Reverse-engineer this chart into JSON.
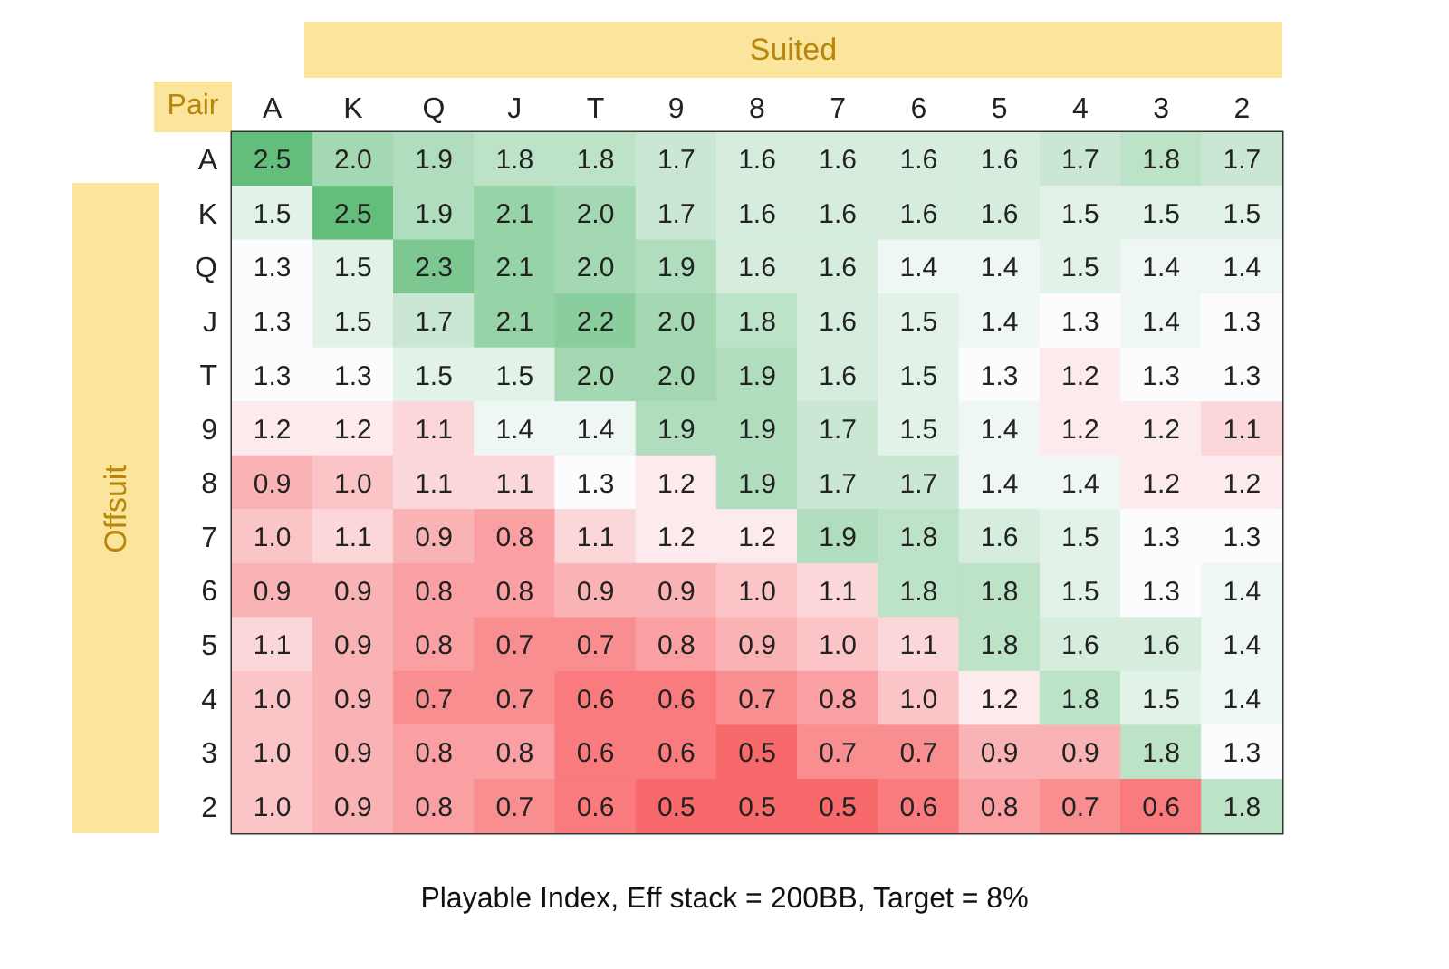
{
  "chart_data": {
    "type": "heatmap",
    "title": "Playable Index, Eff stack = 200BB, Target = 8%",
    "xlabel": "Suited",
    "ylabel": "Offsuit",
    "annotations": [
      "Pair"
    ],
    "categories": [
      "A",
      "K",
      "Q",
      "J",
      "T",
      "9",
      "8",
      "7",
      "6",
      "5",
      "4",
      "3",
      "2"
    ],
    "y_categories": [
      "A",
      "K",
      "Q",
      "J",
      "T",
      "9",
      "8",
      "7",
      "6",
      "5",
      "4",
      "3",
      "2"
    ],
    "cell_labels": [
      [
        "2.5",
        "2.0",
        "1.9",
        "1.8",
        "1.8",
        "1.7",
        "1.6",
        "1.6",
        "1.6",
        "1.6",
        "1.7",
        "1.8",
        "1.7"
      ],
      [
        "1.5",
        "2.5",
        "1.9",
        "2.1",
        "2.0",
        "1.7",
        "1.6",
        "1.6",
        "1.6",
        "1.6",
        "1.5",
        "1.5",
        "1.5"
      ],
      [
        "1.3",
        "1.5",
        "2.3",
        "2.1",
        "2.0",
        "1.9",
        "1.6",
        "1.6",
        "1.4",
        "1.4",
        "1.5",
        "1.4",
        "1.4"
      ],
      [
        "1.3",
        "1.5",
        "1.7",
        "2.1",
        "2.2",
        "2.0",
        "1.8",
        "1.6",
        "1.5",
        "1.4",
        "1.3",
        "1.4",
        "1.3"
      ],
      [
        "1.3",
        "1.3",
        "1.5",
        "1.5",
        "2.0",
        "2.0",
        "1.9",
        "1.6",
        "1.5",
        "1.3",
        "1.2",
        "1.3",
        "1.3"
      ],
      [
        "1.2",
        "1.2",
        "1.1",
        "1.4",
        "1.4",
        "1.9",
        "1.9",
        "1.7",
        "1.5",
        "1.4",
        "1.2",
        "1.2",
        "1.1"
      ],
      [
        "0.9",
        "1.0",
        "1.1",
        "1.1",
        "1.3",
        "1.2",
        "1.9",
        "1.7",
        "1.7",
        "1.4",
        "1.4",
        "1.2",
        "1.2"
      ],
      [
        "1.0",
        "1.1",
        "0.9",
        "0.8",
        "1.1",
        "1.2",
        "1.2",
        "1.9",
        "1.8",
        "1.6",
        "1.5",
        "1.3",
        "1.3"
      ],
      [
        "0.9",
        "0.9",
        "0.8",
        "0.8",
        "0.9",
        "0.9",
        "1.0",
        "1.1",
        "1.8",
        "1.8",
        "1.5",
        "1.3",
        "1.4"
      ],
      [
        "1.1",
        "0.9",
        "0.8",
        "0.7",
        "0.7",
        "0.8",
        "0.9",
        "1.0",
        "1.1",
        "1.8",
        "1.6",
        "1.6",
        "1.4"
      ],
      [
        "1.0",
        "0.9",
        "0.7",
        "0.7",
        "0.6",
        "0.6",
        "0.7",
        "0.8",
        "1.0",
        "1.2",
        "1.8",
        "1.5",
        "1.4"
      ],
      [
        "1.0",
        "0.9",
        "0.8",
        "0.8",
        "0.6",
        "0.6",
        "0.5",
        "0.7",
        "0.7",
        "0.9",
        "0.9",
        "1.8",
        "1.3"
      ],
      [
        "1.0",
        "0.9",
        "0.8",
        "0.7",
        "0.6",
        "0.5",
        "0.5",
        "0.5",
        "0.6",
        "0.8",
        "0.7",
        "0.6",
        "1.8"
      ]
    ],
    "cells": [
      [
        2.5,
        2.0,
        1.9,
        1.8,
        1.8,
        1.7,
        1.6,
        1.6,
        1.6,
        1.6,
        1.7,
        1.8,
        1.7
      ],
      [
        1.5,
        2.5,
        1.9,
        2.1,
        2.0,
        1.7,
        1.6,
        1.6,
        1.6,
        1.6,
        1.5,
        1.5,
        1.5
      ],
      [
        1.3,
        1.5,
        2.3,
        2.1,
        2.0,
        1.9,
        1.6,
        1.6,
        1.4,
        1.4,
        1.5,
        1.4,
        1.4
      ],
      [
        1.3,
        1.5,
        1.7,
        2.1,
        2.2,
        2.0,
        1.8,
        1.6,
        1.5,
        1.4,
        1.3,
        1.4,
        1.3
      ],
      [
        1.3,
        1.3,
        1.5,
        1.5,
        2.0,
        2.0,
        1.9,
        1.6,
        1.5,
        1.3,
        1.2,
        1.3,
        1.3
      ],
      [
        1.2,
        1.2,
        1.1,
        1.4,
        1.4,
        1.9,
        1.9,
        1.7,
        1.5,
        1.4,
        1.2,
        1.2,
        1.1
      ],
      [
        0.9,
        1.0,
        1.1,
        1.1,
        1.3,
        1.2,
        1.9,
        1.7,
        1.7,
        1.4,
        1.4,
        1.2,
        1.2
      ],
      [
        1.0,
        1.1,
        0.9,
        0.8,
        1.1,
        1.2,
        1.2,
        1.9,
        1.8,
        1.6,
        1.5,
        1.3,
        1.3
      ],
      [
        0.9,
        0.9,
        0.8,
        0.8,
        0.9,
        0.9,
        1.0,
        1.1,
        1.8,
        1.8,
        1.5,
        1.3,
        1.4
      ],
      [
        1.1,
        0.9,
        0.8,
        0.7,
        0.7,
        0.8,
        0.9,
        1.0,
        1.1,
        1.8,
        1.6,
        1.6,
        1.4
      ],
      [
        1.0,
        0.9,
        0.7,
        0.7,
        0.6,
        0.6,
        0.7,
        0.8,
        1.0,
        1.2,
        1.8,
        1.5,
        1.4
      ],
      [
        1.0,
        0.9,
        0.8,
        0.8,
        0.6,
        0.6,
        0.5,
        0.7,
        0.7,
        0.9,
        0.9,
        1.8,
        1.3
      ],
      [
        1.0,
        0.9,
        0.8,
        0.7,
        0.6,
        0.5,
        0.5,
        0.5,
        0.6,
        0.8,
        0.7,
        0.6,
        1.8
      ]
    ]
  }
}
